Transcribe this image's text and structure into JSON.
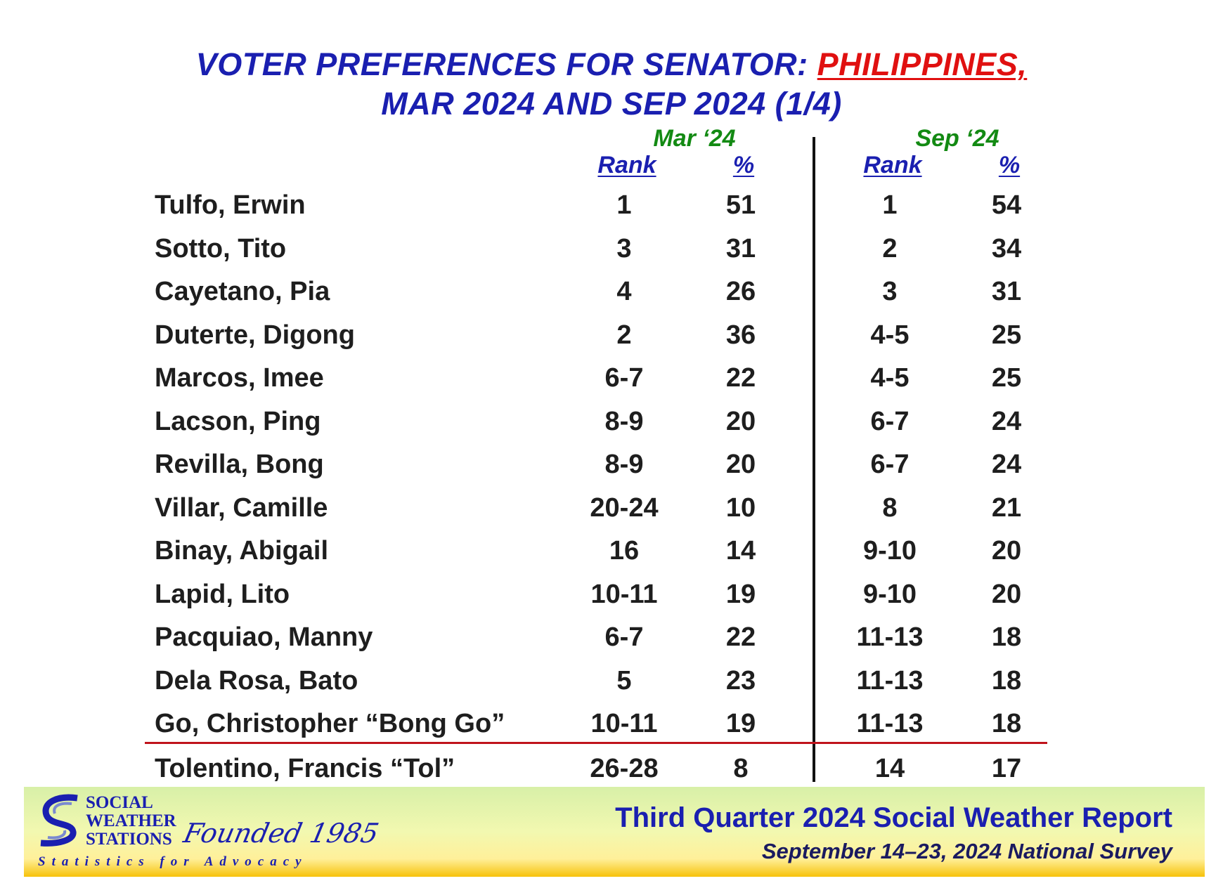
{
  "chart_data": {
    "type": "table",
    "title": {
      "line1_prefix": "VOTER PREFERENCES FOR SENATOR: ",
      "line1_accent": "PHILIPPINES,",
      "line2": "MAR 2024 AND SEP 2024 (1/4)"
    },
    "periods": [
      "Mar ‘24",
      "Sep ‘24"
    ],
    "column_headers": {
      "rank": "Rank",
      "pct": "%"
    },
    "rows": [
      {
        "name": "Tulfo, Erwin",
        "mar_rank": "1",
        "mar_pct": 51,
        "sep_rank": "1",
        "sep_pct": 54
      },
      {
        "name": "Sotto, Tito",
        "mar_rank": "3",
        "mar_pct": 31,
        "sep_rank": "2",
        "sep_pct": 34
      },
      {
        "name": "Cayetano, Pia",
        "mar_rank": "4",
        "mar_pct": 26,
        "sep_rank": "3",
        "sep_pct": 31
      },
      {
        "name": "Duterte, Digong",
        "mar_rank": "2",
        "mar_pct": 36,
        "sep_rank": "4-5",
        "sep_pct": 25
      },
      {
        "name": "Marcos, Imee",
        "mar_rank": "6-7",
        "mar_pct": 22,
        "sep_rank": "4-5",
        "sep_pct": 25
      },
      {
        "name": "Lacson, Ping",
        "mar_rank": "8-9",
        "mar_pct": 20,
        "sep_rank": "6-7",
        "sep_pct": 24
      },
      {
        "name": "Revilla, Bong",
        "mar_rank": "8-9",
        "mar_pct": 20,
        "sep_rank": "6-7",
        "sep_pct": 24
      },
      {
        "name": "Villar, Camille",
        "mar_rank": "20-24",
        "mar_pct": 10,
        "sep_rank": "8",
        "sep_pct": 21
      },
      {
        "name": "Binay, Abigail",
        "mar_rank": "16",
        "mar_pct": 14,
        "sep_rank": "9-10",
        "sep_pct": 20
      },
      {
        "name": "Lapid, Lito",
        "mar_rank": "10-11",
        "mar_pct": 19,
        "sep_rank": "9-10",
        "sep_pct": 20
      },
      {
        "name": "Pacquiao, Manny",
        "mar_rank": "6-7",
        "mar_pct": 22,
        "sep_rank": "11-13",
        "sep_pct": 18
      },
      {
        "name": "Dela Rosa, Bato",
        "mar_rank": "5",
        "mar_pct": 23,
        "sep_rank": "11-13",
        "sep_pct": 18
      },
      {
        "name": "Go, Christopher “Bong Go”",
        "mar_rank": "10-11",
        "mar_pct": 19,
        "sep_rank": "11-13",
        "sep_pct": 18
      },
      {
        "name": "Tolentino, Francis “Tol”",
        "mar_rank": "26-28",
        "mar_pct": 8,
        "sep_rank": "14",
        "sep_pct": 17
      }
    ],
    "cutoff_after_row": 13,
    "colors": {
      "title": "#1a1fb0",
      "accent": "#e01010",
      "period": "#138a13",
      "cutoff_line": "#c0141c"
    }
  },
  "footer": {
    "logo_lines": [
      "SOCIAL",
      "WEATHER",
      "STATIONS"
    ],
    "founded": "Founded 1985",
    "tagline": "Statistics for Advocacy",
    "report_title": "Third Quarter 2024 Social Weather Report",
    "report_subtitle": "September 14–23, 2024 National Survey"
  }
}
